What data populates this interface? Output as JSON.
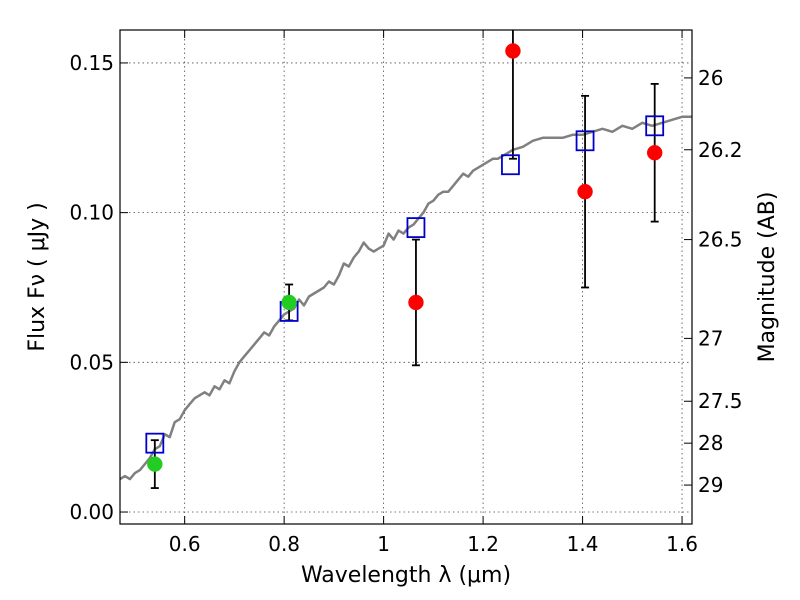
{
  "chart_data": {
    "type": "scatter",
    "xlabel": "Wavelength  λ (μm)",
    "ylabel": "Flux  Fν  ( μJy )",
    "y2label": "Magnitude (AB)",
    "xlim": [
      0.47,
      1.62
    ],
    "ylim": [
      -0.004,
      0.161
    ],
    "xticks": [
      0.6,
      0.8,
      1.0,
      1.2,
      1.4,
      1.6
    ],
    "xtick_labels": [
      "0.6",
      "0.8",
      "1",
      "1.2",
      "1.4",
      "1.6"
    ],
    "yticks": [
      0.0,
      0.05,
      0.1,
      0.15
    ],
    "ytick_labels": [
      "0.00",
      "0.05",
      "0.10",
      "0.15"
    ],
    "y2ticks": [
      {
        "label": "26",
        "flux": 0.145
      },
      {
        "label": "26.2",
        "flux": 0.121
      },
      {
        "label": "26.5",
        "flux": 0.091
      },
      {
        "label": "27",
        "flux": 0.058
      },
      {
        "label": "27.5",
        "flux": 0.037
      },
      {
        "label": "28",
        "flux": 0.023
      },
      {
        "label": "29",
        "flux": 0.009
      }
    ],
    "grid": true,
    "colors": {
      "model": "#808080",
      "model_points": "#0000cc",
      "observed_red": "#ff0000",
      "observed_green": "#22cc22",
      "errorbar": "#000000"
    },
    "series": [
      {
        "name": "model_spectrum",
        "style": "line",
        "x": [
          0.47,
          0.48,
          0.49,
          0.5,
          0.51,
          0.52,
          0.53,
          0.54,
          0.55,
          0.56,
          0.57,
          0.58,
          0.59,
          0.6,
          0.61,
          0.62,
          0.63,
          0.64,
          0.65,
          0.66,
          0.67,
          0.68,
          0.69,
          0.7,
          0.71,
          0.72,
          0.73,
          0.74,
          0.75,
          0.76,
          0.77,
          0.78,
          0.79,
          0.8,
          0.81,
          0.82,
          0.83,
          0.84,
          0.85,
          0.86,
          0.87,
          0.88,
          0.89,
          0.9,
          0.91,
          0.92,
          0.93,
          0.94,
          0.95,
          0.96,
          0.97,
          0.98,
          0.99,
          1.0,
          1.01,
          1.02,
          1.03,
          1.04,
          1.05,
          1.06,
          1.07,
          1.08,
          1.09,
          1.1,
          1.11,
          1.12,
          1.13,
          1.14,
          1.15,
          1.16,
          1.17,
          1.18,
          1.19,
          1.2,
          1.21,
          1.22,
          1.23,
          1.24,
          1.25,
          1.26,
          1.28,
          1.3,
          1.32,
          1.34,
          1.36,
          1.38,
          1.4,
          1.42,
          1.44,
          1.46,
          1.48,
          1.5,
          1.52,
          1.54,
          1.56,
          1.58,
          1.6,
          1.62
        ],
        "y": [
          0.011,
          0.012,
          0.011,
          0.013,
          0.014,
          0.016,
          0.018,
          0.021,
          0.022,
          0.026,
          0.025,
          0.03,
          0.031,
          0.034,
          0.036,
          0.038,
          0.039,
          0.04,
          0.039,
          0.042,
          0.041,
          0.044,
          0.043,
          0.047,
          0.05,
          0.052,
          0.054,
          0.056,
          0.058,
          0.06,
          0.059,
          0.062,
          0.064,
          0.066,
          0.067,
          0.068,
          0.071,
          0.069,
          0.072,
          0.073,
          0.074,
          0.075,
          0.077,
          0.076,
          0.079,
          0.083,
          0.082,
          0.085,
          0.087,
          0.09,
          0.088,
          0.087,
          0.088,
          0.089,
          0.093,
          0.091,
          0.094,
          0.093,
          0.095,
          0.096,
          0.098,
          0.1,
          0.103,
          0.104,
          0.106,
          0.107,
          0.107,
          0.109,
          0.111,
          0.113,
          0.112,
          0.114,
          0.115,
          0.116,
          0.117,
          0.118,
          0.118,
          0.119,
          0.12,
          0.121,
          0.122,
          0.124,
          0.125,
          0.125,
          0.125,
          0.126,
          0.126,
          0.127,
          0.128,
          0.127,
          0.129,
          0.128,
          0.13,
          0.129,
          0.13,
          0.131,
          0.132,
          0.132
        ]
      },
      {
        "name": "model_photometry",
        "style": "open_square",
        "x": [
          0.54,
          0.81,
          1.065,
          1.255,
          1.405,
          1.545
        ],
        "y": [
          0.023,
          0.067,
          0.095,
          0.116,
          0.124,
          0.129
        ]
      },
      {
        "name": "observed_detections",
        "style": "filled_circle",
        "color_key": "observed_red",
        "x": [
          1.065,
          1.26,
          1.405,
          1.545
        ],
        "y": [
          0.07,
          0.154,
          0.107,
          0.12
        ],
        "yerr_low": [
          0.049,
          0.118,
          0.075,
          0.097
        ],
        "yerr_high": [
          0.091,
          0.161,
          0.139,
          0.143
        ]
      },
      {
        "name": "observed_optical",
        "style": "filled_circle",
        "color_key": "observed_green",
        "x": [
          0.54,
          0.81
        ],
        "y": [
          0.016,
          0.07
        ],
        "yerr_low": [
          0.008,
          0.064
        ],
        "yerr_high": [
          0.024,
          0.076
        ]
      }
    ]
  }
}
